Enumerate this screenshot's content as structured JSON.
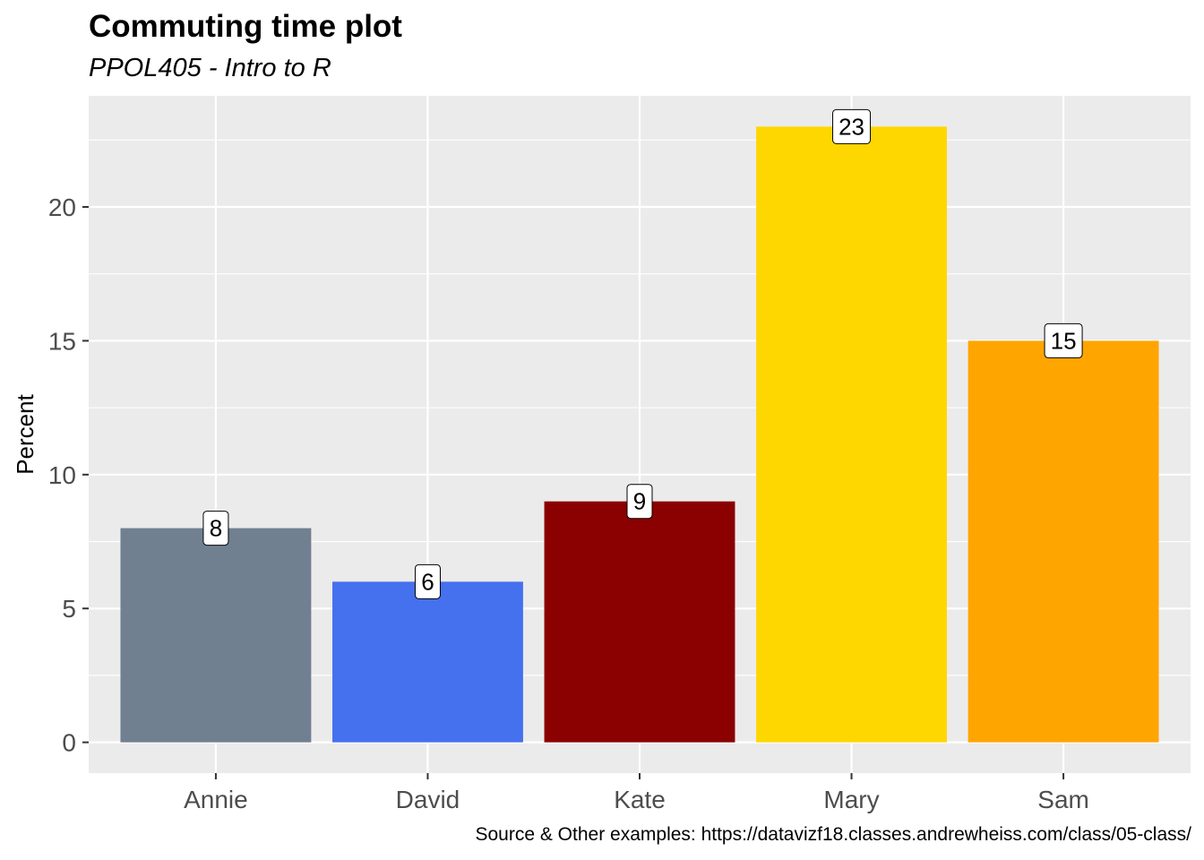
{
  "chart_data": {
    "type": "bar",
    "title": "Commuting time plot",
    "subtitle": "PPOL405 - Intro to R",
    "caption": "Source & Other examples: https://datavizf18.classes.andrewheiss.com/class/05-class/",
    "xlabel": "",
    "ylabel": "Percent",
    "categories": [
      "Annie",
      "David",
      "Kate",
      "Mary",
      "Sam"
    ],
    "values": [
      8,
      6,
      9,
      23,
      15
    ],
    "data_labels": [
      "8",
      "6",
      "9",
      "23",
      "15"
    ],
    "colors": [
      "#708090",
      "#4570EE",
      "#8B0000",
      "#FFD700",
      "#FFA500"
    ],
    "ylim": [
      -1.15,
      24.15
    ],
    "yticks": [
      0,
      5,
      10,
      15,
      20
    ],
    "ytick_labels": [
      "0",
      "5",
      "10",
      "15",
      "20"
    ],
    "grid": true,
    "legend": "none",
    "panel_background": "#EBEBEB",
    "grid_color": "#FFFFFF"
  }
}
